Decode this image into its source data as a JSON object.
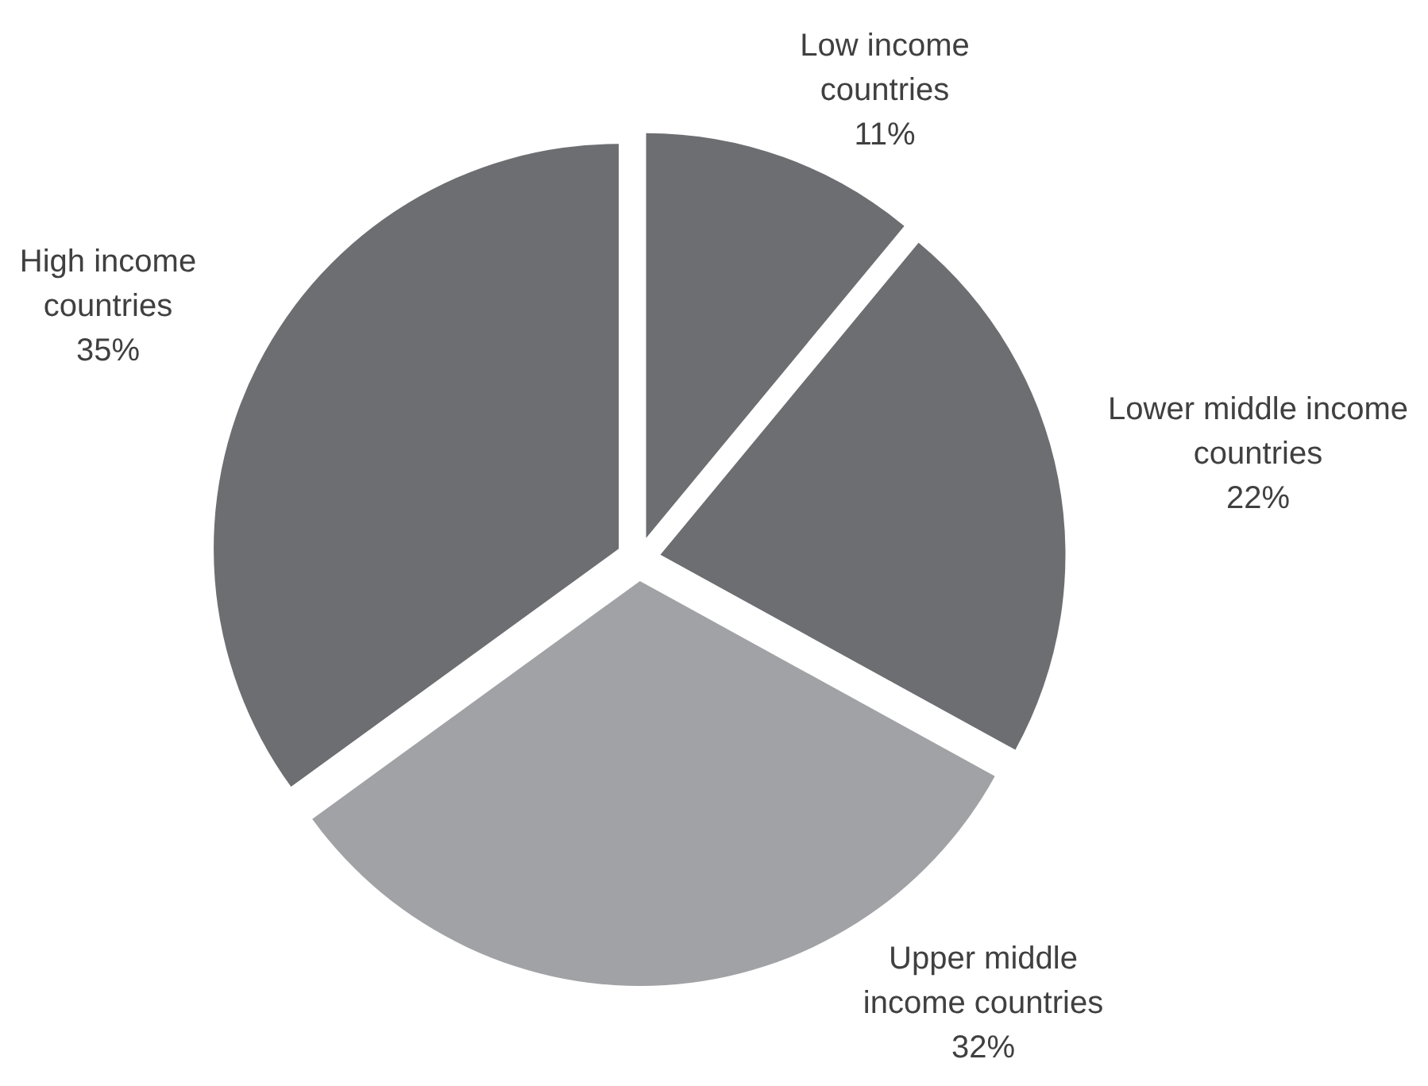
{
  "chart_data": {
    "type": "pie",
    "categories": [
      "Low income countries",
      "Lower middle income countries",
      "Upper middle income countries",
      "High income countries"
    ],
    "values": [
      11,
      22,
      32,
      35
    ],
    "colors": [
      "#6d6e71",
      "#6d6e71",
      "#a1a2a5",
      "#6d6e71"
    ],
    "value_labels": [
      "11%",
      "22%",
      "32%",
      "35%"
    ]
  }
}
